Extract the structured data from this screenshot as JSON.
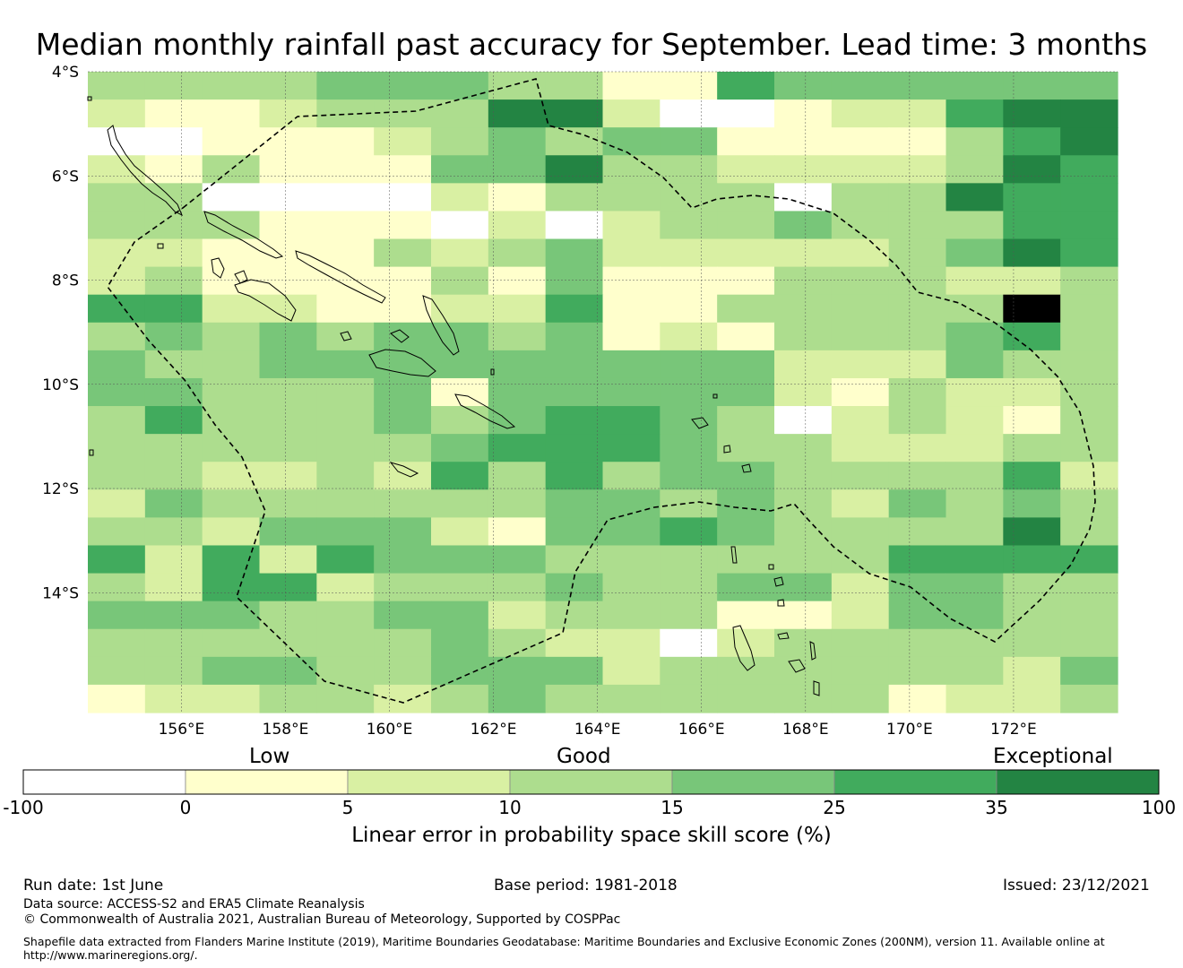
{
  "title": "Median monthly rainfall past accuracy for September. Lead time: 3 months",
  "map": {
    "lat_labels": [
      "4°S",
      "6°S",
      "8°S",
      "10°S",
      "12°S",
      "14°S"
    ],
    "lon_labels": [
      "156°E",
      "158°E",
      "160°E",
      "162°E",
      "164°E",
      "166°E",
      "168°E",
      "170°E",
      "172°E"
    ],
    "lon_range": [
      154.2,
      174.0
    ],
    "lat_range": [
      -4.0,
      -16.3
    ],
    "cell_size_deg": 0.83,
    "grid": [
      "333344433115444444",
      "211233366200122566",
      "001112343441111356",
      "213111446332222365",
      "330000213333033655",
      "333111020233433355",
      "221113234222223465",
      "231111314111333223",
      "552211225113333373",
      "343434434121333453",
      "433444444444222433",
      "443334144444213223",
      "353334345543023213",
      "333333455543322233",
      "332232535344333352",
      "243333334434324343",
      "332444214454333363",
      "525254443333335555",
      "325523334334424433",
      "444334423331124433",
      "333333432202333333",
      "334433444233333324",
      "122332343333331223"
    ]
  },
  "colorbar": {
    "categories": [
      "Low",
      "Good",
      "Exceptional"
    ],
    "ticks": [
      "-100",
      "0",
      "5",
      "10",
      "15",
      "25",
      "35",
      "100"
    ],
    "colors": [
      "#ffffff",
      "#ffffcc",
      "#d9f0a3",
      "#addd8e",
      "#78c679",
      "#41ab5d",
      "#238443"
    ],
    "title": "Linear error in probability space skill score (%)"
  },
  "footer": {
    "run_date": "Run date: 1st June",
    "base_period": "Base period: 1981-2018",
    "issued": "Issued: 23/12/2021",
    "data_source": "Data source: ACCESS-S2 and ERA5 Climate Reanalysis",
    "copyright": "© Commonwealth of Australia 2021, Australian Bureau of Meteorology, Supported by COSPPac",
    "shapefile_line1": "Shapefile data extracted from Flanders Marine Institute (2019), Maritime Boundaries Geodatabase: Maritime Boundaries and Exclusive Economic Zones (200NM), version 11. Available online at",
    "shapefile_line2": "http://www.marineregions.org/."
  }
}
